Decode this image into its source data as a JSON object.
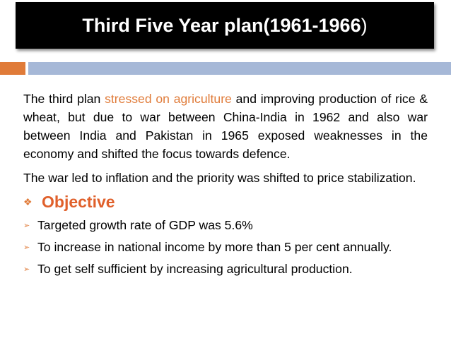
{
  "slide": {
    "title_main": "Third Five Year plan(1961-1966",
    "title_close": ")"
  },
  "body": {
    "para1_pre": "The third plan ",
    "para1_highlight": "stressed on agriculture",
    "para1_post": " and improving production of rice & wheat, but due to war between China-India in 1962 and also war between India and Pakistan in 1965 exposed weaknesses in the economy and shifted the focus towards defence.",
    "para2": "The war led to inflation and the priority was shifted to price stabilization."
  },
  "objective": {
    "heading": "Objective",
    "items": [
      "Targeted growth rate of  GDP was 5.6%",
      "To increase in national income by more than 5 per cent annually.",
      "To get self sufficient by increasing agricultural production."
    ]
  },
  "colors": {
    "accent_orange": "#e07b39",
    "accent_blue": "#a6b8d7",
    "title_bg": "#000000"
  }
}
